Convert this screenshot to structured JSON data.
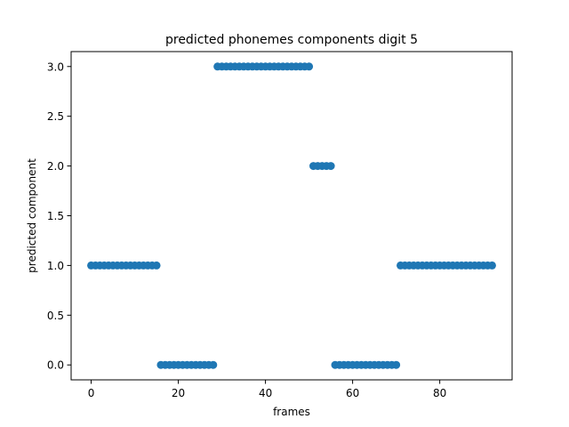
{
  "chart_data": {
    "type": "scatter",
    "title": "predicted phonemes components digit 5",
    "xlabel": "frames",
    "ylabel": "predicted component",
    "xlim": [
      -4.6,
      96.6
    ],
    "ylim": [
      -0.15,
      3.15
    ],
    "xticks": [
      0,
      20,
      40,
      60,
      80
    ],
    "xtick_labels": [
      "0",
      "20",
      "40",
      "60",
      "80"
    ],
    "yticks": [
      0.0,
      0.5,
      1.0,
      1.5,
      2.0,
      2.5,
      3.0
    ],
    "ytick_labels": [
      "0.0",
      "0.5",
      "1.0",
      "1.5",
      "2.0",
      "2.5",
      "3.0"
    ],
    "grid": false,
    "marker_color": "#1f77b4",
    "series": [
      {
        "x": [
          0,
          1,
          2,
          3,
          4,
          5,
          6,
          7,
          8,
          9,
          10,
          11,
          12,
          13,
          14,
          15,
          16,
          17,
          18,
          19,
          20,
          21,
          22,
          23,
          24,
          25,
          26,
          27,
          28,
          29,
          30,
          31,
          32,
          33,
          34,
          35,
          36,
          37,
          38,
          39,
          40,
          41,
          42,
          43,
          44,
          45,
          46,
          47,
          48,
          49,
          50,
          51,
          52,
          53,
          54,
          55,
          56,
          57,
          58,
          59,
          60,
          61,
          62,
          63,
          64,
          65,
          66,
          67,
          68,
          69,
          70,
          71,
          72,
          73,
          74,
          75,
          76,
          77,
          78,
          79,
          80,
          81,
          82,
          83,
          84,
          85,
          86,
          87,
          88,
          89,
          90,
          91,
          92
        ],
        "y": [
          1,
          1,
          1,
          1,
          1,
          1,
          1,
          1,
          1,
          1,
          1,
          1,
          1,
          1,
          1,
          1,
          0,
          0,
          0,
          0,
          0,
          0,
          0,
          0,
          0,
          0,
          0,
          0,
          0,
          3,
          3,
          3,
          3,
          3,
          3,
          3,
          3,
          3,
          3,
          3,
          3,
          3,
          3,
          3,
          3,
          3,
          3,
          3,
          3,
          3,
          3,
          2,
          2,
          2,
          2,
          2,
          0,
          0,
          0,
          0,
          0,
          0,
          0,
          0,
          0,
          0,
          0,
          0,
          0,
          0,
          0,
          1,
          1,
          1,
          1,
          1,
          1,
          1,
          1,
          1,
          1,
          1,
          1,
          1,
          1,
          1,
          1,
          1,
          1,
          1,
          1,
          1,
          1
        ]
      }
    ]
  }
}
